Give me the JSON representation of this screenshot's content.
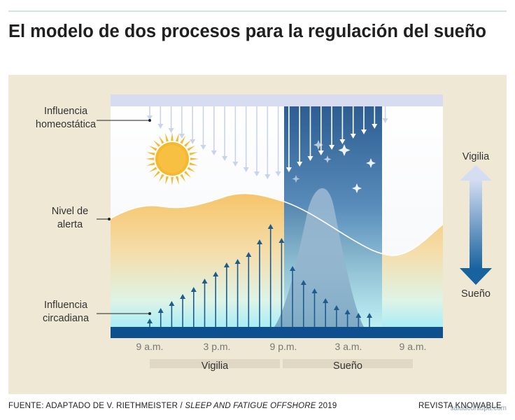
{
  "title": "El modelo de dos procesos para la regulación del sueño",
  "labels": {
    "homeostatic_1": "Influencia",
    "homeostatic_2": "homeostática",
    "alert_1": "Nivel de",
    "alert_2": "alerta",
    "circadian_1": "Influencia",
    "circadian_2": "circadiana",
    "scale_top": "Vigilia",
    "scale_bottom": "Sueño"
  },
  "x_ticks": [
    "9 a.m.",
    "3 p.m.",
    "9 p.m.",
    "3 a.m.",
    "9 a.m."
  ],
  "bands": {
    "wake": "Vigilia",
    "sleep": "Sueño"
  },
  "footer": {
    "prefix": "FUENTE: ADAPTADO DE V. RIETHMEISTER / ",
    "italic": "SLEEP AND FATIGUE OFFSHORE",
    "suffix": " 2019",
    "right": "REVISTA KNOWABLE"
  },
  "watermark": "saludconlupa.com",
  "colors": {
    "panel": "#eee8d5",
    "night": "#1f5a96",
    "baseline": "#0d4f8f",
    "arrow_up": "#1e5b8f",
    "arrow_down": "#c9d3ec",
    "sun": "#f5b92e"
  },
  "icons": [
    "sun-icon",
    "moon-icon",
    "star-icon",
    "up-arrow-icon",
    "down-arrow-icon"
  ]
}
